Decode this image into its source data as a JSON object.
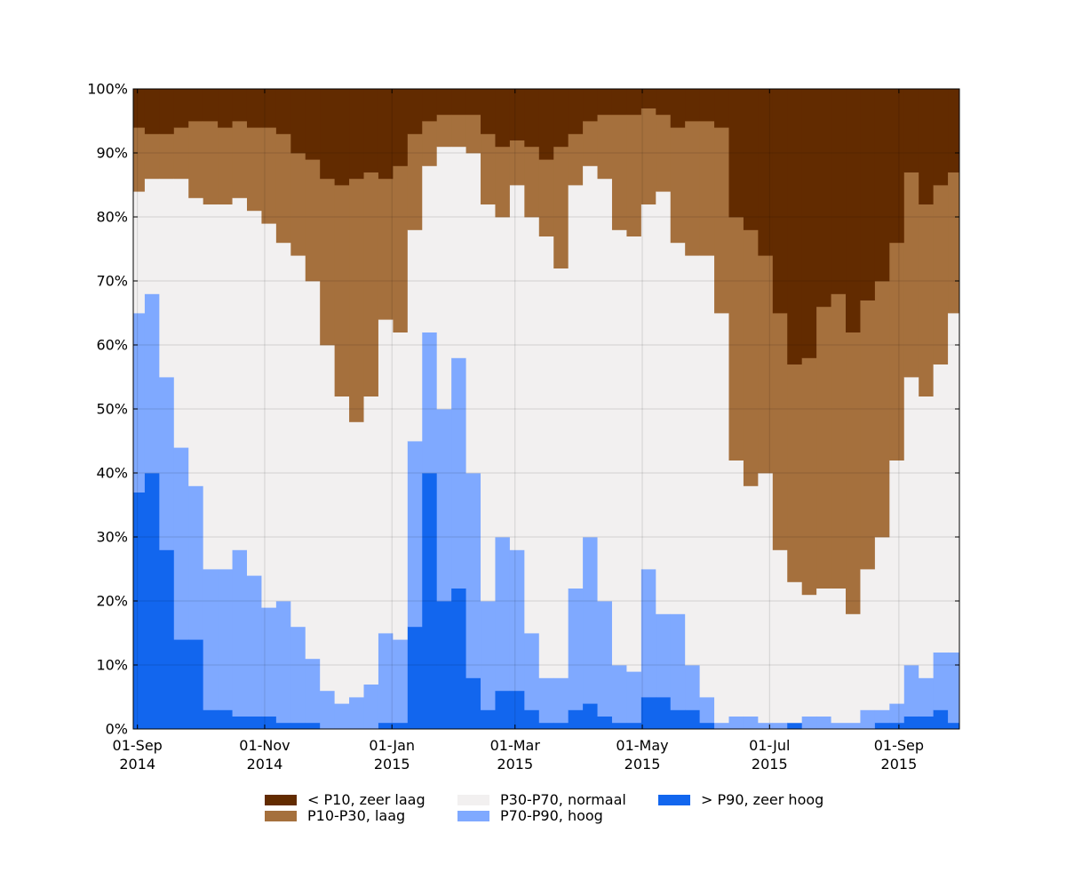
{
  "chart_data": {
    "type": "stacked_area",
    "x": [
      "2014-09-01",
      "2014-09-08",
      "2014-09-15",
      "2014-09-22",
      "2014-09-29",
      "2014-10-06",
      "2014-10-13",
      "2014-10-20",
      "2014-10-27",
      "2014-11-03",
      "2014-11-10",
      "2014-11-17",
      "2014-11-24",
      "2014-12-01",
      "2014-12-08",
      "2014-12-15",
      "2014-12-22",
      "2014-12-29",
      "2015-01-05",
      "2015-01-12",
      "2015-01-19",
      "2015-01-26",
      "2015-02-02",
      "2015-02-09",
      "2015-02-16",
      "2015-02-23",
      "2015-03-02",
      "2015-03-09",
      "2015-03-16",
      "2015-03-23",
      "2015-03-30",
      "2015-04-06",
      "2015-04-13",
      "2015-04-20",
      "2015-04-27",
      "2015-05-04",
      "2015-05-11",
      "2015-05-18",
      "2015-05-25",
      "2015-06-01",
      "2015-06-08",
      "2015-06-15",
      "2015-06-22",
      "2015-06-29",
      "2015-07-06",
      "2015-07-13",
      "2015-07-20",
      "2015-07-27",
      "2015-08-03",
      "2015-08-10",
      "2015-08-17",
      "2015-08-24",
      "2015-08-31",
      "2015-09-07",
      "2015-09-14",
      "2015-09-21",
      "2015-09-28"
    ],
    "series": [
      {
        "name": "< P10, zeer laag",
        "color": "#622b00",
        "values": [
          6,
          7,
          7,
          6,
          5,
          5,
          6,
          5,
          6,
          6,
          7,
          10,
          11,
          14,
          15,
          14,
          13,
          14,
          12,
          7,
          5,
          4,
          4,
          4,
          7,
          9,
          8,
          9,
          11,
          9,
          7,
          5,
          4,
          4,
          4,
          3,
          4,
          6,
          5,
          5,
          6,
          20,
          22,
          26,
          35,
          43,
          42,
          34,
          32,
          38,
          33,
          30,
          24,
          13,
          18,
          15,
          13
        ]
      },
      {
        "name": "P10-P30, laag",
        "color": "#a5703d",
        "values": [
          10,
          7,
          7,
          8,
          12,
          13,
          12,
          12,
          13,
          15,
          17,
          16,
          19,
          26,
          33,
          38,
          35,
          22,
          26,
          15,
          7,
          5,
          5,
          6,
          11,
          11,
          7,
          11,
          12,
          19,
          8,
          7,
          10,
          18,
          19,
          15,
          12,
          18,
          21,
          21,
          29,
          38,
          40,
          34,
          37,
          34,
          37,
          44,
          46,
          44,
          42,
          40,
          34,
          32,
          30,
          28,
          22
        ]
      },
      {
        "name": "P30-P70, normaal",
        "color": "#f2f0f0",
        "values": [
          19,
          18,
          31,
          42,
          45,
          57,
          57,
          55,
          57,
          60,
          56,
          58,
          59,
          54,
          48,
          43,
          45,
          49,
          48,
          33,
          26,
          41,
          33,
          50,
          62,
          50,
          57,
          65,
          69,
          64,
          63,
          58,
          66,
          68,
          68,
          57,
          66,
          58,
          64,
          69,
          64,
          40,
          36,
          39,
          27,
          22,
          19,
          20,
          21,
          17,
          22,
          27,
          38,
          45,
          44,
          45,
          53
        ]
      },
      {
        "name": "P70-P90, hoog",
        "color": "#7fa9ff",
        "values": [
          28,
          28,
          27,
          30,
          24,
          22,
          22,
          26,
          22,
          17,
          19,
          15,
          10,
          6,
          4,
          5,
          7,
          14,
          13,
          29,
          22,
          30,
          36,
          32,
          17,
          24,
          22,
          12,
          7,
          7,
          19,
          26,
          18,
          9,
          8,
          20,
          13,
          15,
          7,
          4,
          1,
          2,
          2,
          1,
          1,
          0,
          2,
          2,
          1,
          1,
          3,
          2,
          3,
          8,
          6,
          9,
          11
        ]
      },
      {
        "name": "> P90, zeer hoog",
        "color": "#1266ee",
        "values": [
          37,
          40,
          28,
          14,
          14,
          3,
          3,
          2,
          2,
          2,
          1,
          1,
          1,
          0,
          0,
          0,
          0,
          1,
          1,
          16,
          40,
          20,
          22,
          8,
          3,
          6,
          6,
          3,
          1,
          1,
          3,
          4,
          2,
          1,
          1,
          5,
          5,
          3,
          3,
          1,
          0,
          0,
          0,
          0,
          0,
          1,
          0,
          0,
          0,
          0,
          0,
          1,
          1,
          2,
          2,
          3,
          1
        ]
      }
    ],
    "xlim": [
      "2014-08-30",
      "2015-09-30"
    ],
    "xticks": [
      {
        "value": "2014-09-01",
        "label": "01-Sep\n2014"
      },
      {
        "value": "2014-11-01",
        "label": "01-Nov\n2014"
      },
      {
        "value": "2015-01-01",
        "label": "01-Jan\n2015"
      },
      {
        "value": "2015-03-01",
        "label": "01-Mar\n2015"
      },
      {
        "value": "2015-05-01",
        "label": "01-May\n2015"
      },
      {
        "value": "2015-07-01",
        "label": "01-Jul\n2015"
      },
      {
        "value": "2015-09-01",
        "label": "01-Sep\n2015"
      }
    ],
    "ylim": [
      0,
      100
    ],
    "yticks": [
      {
        "value": 0,
        "label": "0%"
      },
      {
        "value": 10,
        "label": "10%"
      },
      {
        "value": 20,
        "label": "20%"
      },
      {
        "value": 30,
        "label": "30%"
      },
      {
        "value": 40,
        "label": "40%"
      },
      {
        "value": 50,
        "label": "50%"
      },
      {
        "value": 60,
        "label": "60%"
      },
      {
        "value": 70,
        "label": "70%"
      },
      {
        "value": 80,
        "label": "80%"
      },
      {
        "value": 90,
        "label": "90%"
      },
      {
        "value": 100,
        "label": "100%"
      }
    ],
    "grid": true,
    "legend": "bottom"
  }
}
